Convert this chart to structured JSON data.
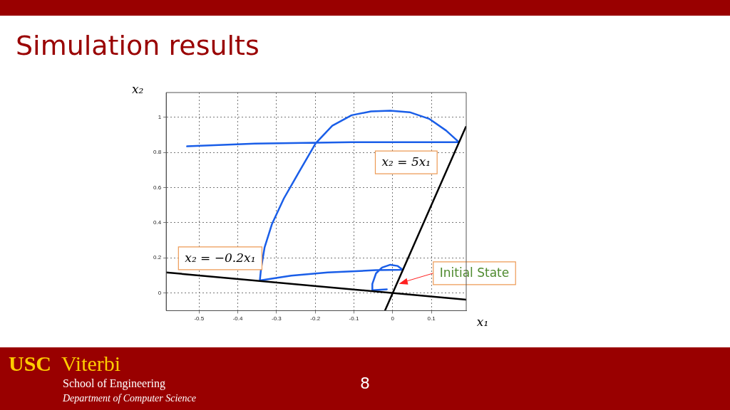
{
  "chart_data": {
    "type": "line",
    "title": "Simulation results",
    "xlabel": "x₁",
    "ylabel": "x₂",
    "xlim": [
      -0.585,
      0.19
    ],
    "ylim": [
      -0.1,
      1.14
    ],
    "xticks": [
      -0.5,
      -0.4,
      -0.3,
      -0.2,
      -0.1,
      0,
      0.1
    ],
    "yticks": [
      0,
      0.2,
      0.4,
      0.6,
      0.8,
      1
    ],
    "grid": true,
    "legend": false,
    "marker": "none",
    "line_style": "solid",
    "series": [
      {
        "color": "#000000",
        "x": [
          -0.02,
          0.189
        ],
        "values": [
          -0.1,
          0.945
        ]
      },
      {
        "color": "#000000",
        "x": [
          -0.585,
          0.19
        ],
        "values": [
          0.117,
          -0.038
        ]
      },
      {
        "color": "#1a5ee8",
        "x": [
          -0.015,
          -0.0525,
          -0.0525,
          -0.043,
          -0.0275,
          -0.006,
          0.013,
          0.026,
          -0.043,
          -0.168,
          -0.262,
          -0.343,
          -0.34,
          -0.331,
          -0.312,
          -0.281,
          -0.243,
          -0.199,
          -0.156,
          -0.106,
          -0.056,
          -0.006,
          0.044,
          0.094,
          0.138,
          0.171,
          -0.106,
          -0.356,
          -0.531
        ],
        "values": [
          0.021,
          0.016,
          0.052,
          0.112,
          0.145,
          0.161,
          0.154,
          0.132,
          0.13,
          0.117,
          0.099,
          0.072,
          0.138,
          0.258,
          0.391,
          0.538,
          0.684,
          0.851,
          0.951,
          1.011,
          1.033,
          1.037,
          1.028,
          0.991,
          0.924,
          0.858,
          0.858,
          0.85,
          0.834
        ]
      }
    ],
    "annotations": [
      "x₂ = 5x₁",
      "x₂ = −0.2x₁",
      {
        "text": "Initial State",
        "x": 0.016,
        "y": 0.052
      },
      "USC",
      "Viterbi",
      "School of Engineering",
      "Department of Computer Science",
      "8"
    ]
  }
}
